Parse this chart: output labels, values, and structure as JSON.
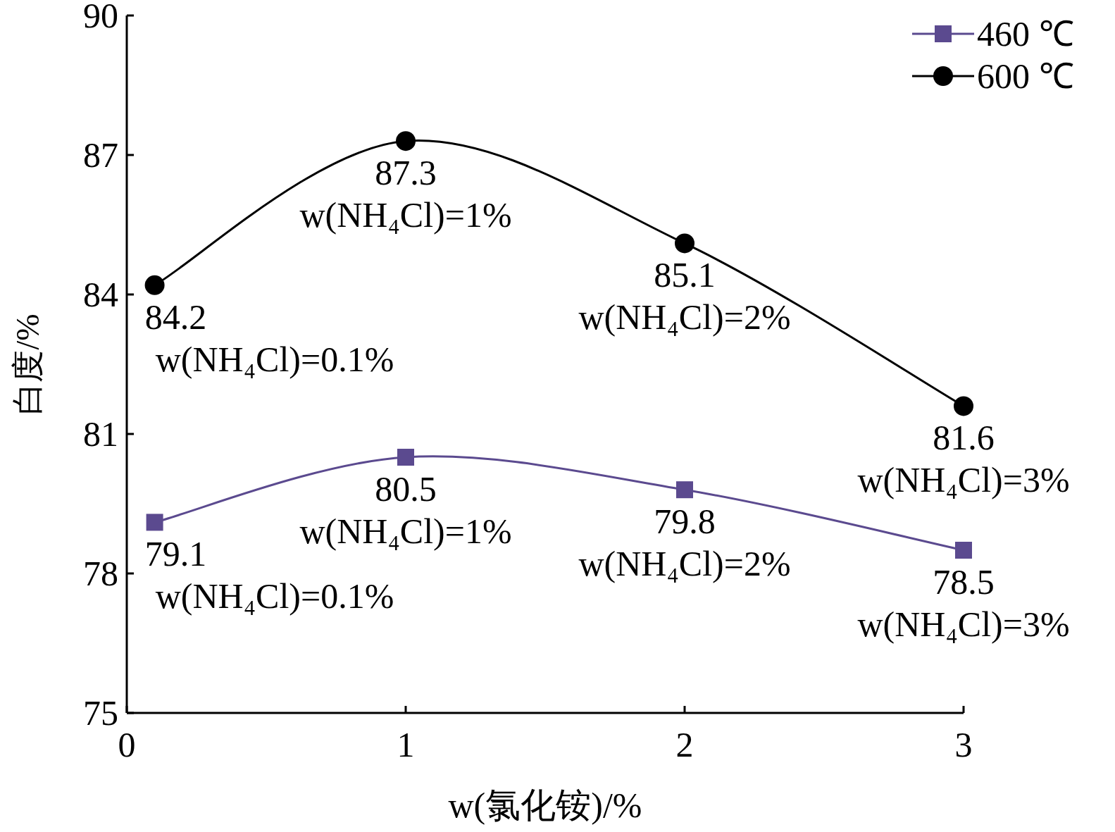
{
  "chart_data": {
    "type": "line",
    "xlabel": "w(氯化铵)/%",
    "ylabel": "白度/%",
    "x": [
      0.1,
      1,
      2,
      3
    ],
    "xlim": [
      0,
      3
    ],
    "xticks": [
      0,
      1,
      2,
      3
    ],
    "ylim": [
      75,
      90
    ],
    "yticks": [
      75,
      78,
      81,
      84,
      87,
      90
    ],
    "legend": "top right",
    "data_labels": true,
    "series": [
      {
        "name": "460 ℃",
        "color": "#5b4a8f",
        "marker": "square",
        "values": [
          79.1,
          80.5,
          79.8,
          78.5
        ]
      },
      {
        "name": "600 ℃",
        "color": "#000000",
        "marker": "circle",
        "values": [
          84.2,
          87.3,
          85.1,
          81.6
        ]
      }
    ],
    "annotations": [
      {
        "text": "w(NH₄Cl)=0.1%",
        "x": 0.1,
        "y": 84.2
      },
      {
        "text": "w(NH₄Cl)=1%",
        "x": 1,
        "y": 87.3
      },
      {
        "text": "w(NH₄Cl)=2%",
        "x": 2,
        "y": 85.1
      },
      {
        "text": "w(NH₄Cl)=3%",
        "x": 3,
        "y": 81.6
      },
      {
        "text": "w(NH₄Cl)=0.1%",
        "x": 0.1,
        "y": 79.1
      },
      {
        "text": "w(NH₄Cl)=1%",
        "x": 1,
        "y": 80.5
      },
      {
        "text": "w(NH₄Cl)=2%",
        "x": 2,
        "y": 79.8
      },
      {
        "text": "w(NH₄Cl)=3%",
        "x": 3,
        "y": 78.5
      }
    ]
  }
}
